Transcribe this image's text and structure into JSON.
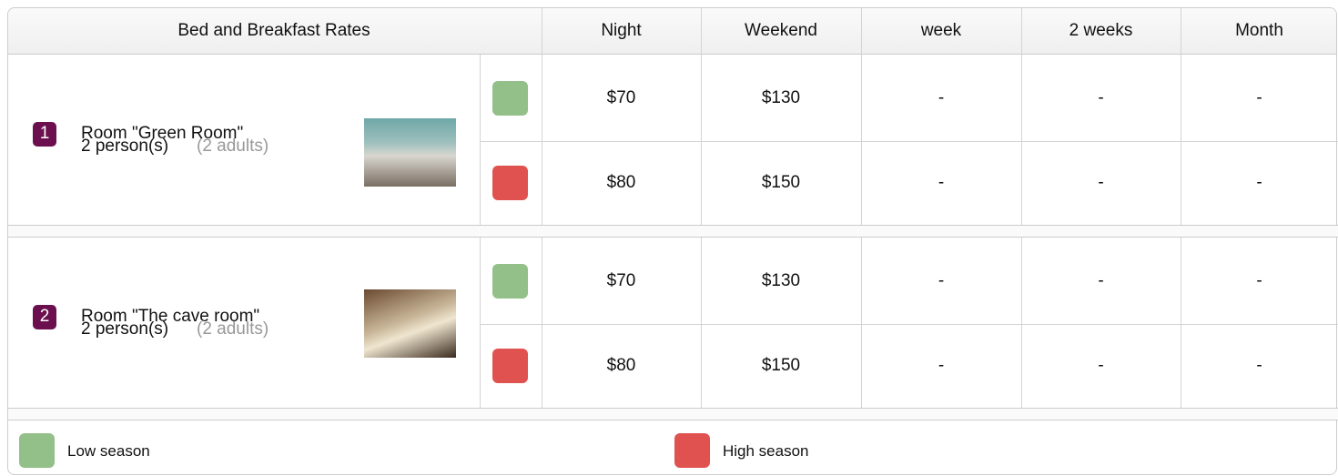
{
  "header": {
    "title": "Bed and Breakfast Rates",
    "columns": [
      "Night",
      "Weekend",
      "week",
      "2 weeks",
      "Month"
    ]
  },
  "rooms": [
    {
      "number": "1",
      "name": "Room \"Green Room\"",
      "capacity": "2 person(s)",
      "detail": "(2 adults)",
      "rates": [
        [
          "$70",
          "$130",
          "-",
          "-",
          "-"
        ],
        [
          "$80",
          "$150",
          "-",
          "-",
          "-"
        ]
      ]
    },
    {
      "number": "2",
      "name": "Room \"The cave room\"",
      "capacity": "2 person(s)",
      "detail": "(2 adults)",
      "rates": [
        [
          "$70",
          "$130",
          "-",
          "-",
          "-"
        ],
        [
          "$80",
          "$150",
          "-",
          "-",
          "-"
        ]
      ]
    }
  ],
  "legend": [
    {
      "label": "Low season",
      "color": "#93bf88"
    },
    {
      "label": "High season",
      "color": "#e05250"
    }
  ]
}
